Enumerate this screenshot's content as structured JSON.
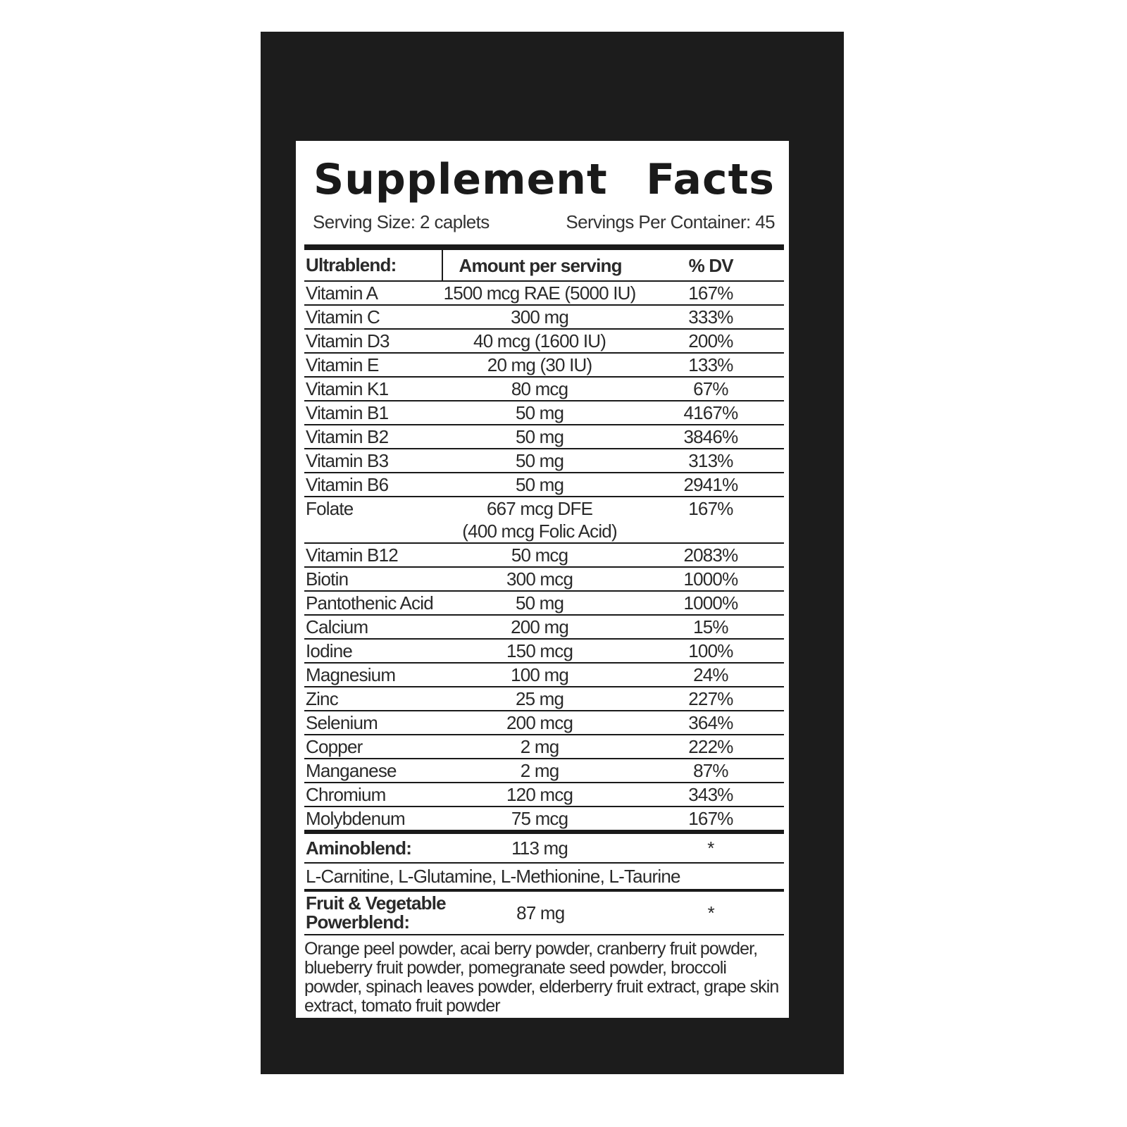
{
  "title": {
    "word1": "Supplement",
    "word2": "Facts"
  },
  "serving_size": "Serving Size: 2 caplets",
  "servings_per_container": "Servings Per Container: 45",
  "headers": {
    "blend": "Ultrablend:",
    "amount": "Amount per serving",
    "dv": "% DV"
  },
  "ultrablend": [
    {
      "name": "Vitamin A",
      "amount": "1500 mcg RAE (5000 IU)",
      "dv": "167%"
    },
    {
      "name": "Vitamin C",
      "amount": "300 mg",
      "dv": "333%"
    },
    {
      "name": "Vitamin D3",
      "amount": "40 mcg (1600 IU)",
      "dv": "200%"
    },
    {
      "name": "Vitamin E",
      "amount": "20 mg (30 IU)",
      "dv": "133%"
    },
    {
      "name": "Vitamin K1",
      "amount": "80 mcg",
      "dv": "67%"
    },
    {
      "name": "Vitamin B1",
      "amount": "50 mg",
      "dv": "4167%"
    },
    {
      "name": "Vitamin B2",
      "amount": "50 mg",
      "dv": "3846%"
    },
    {
      "name": "Vitamin B3",
      "amount": "50 mg",
      "dv": "313%"
    },
    {
      "name": "Vitamin B6",
      "amount": "50 mg",
      "dv": "2941%"
    },
    {
      "name": "Folate",
      "amount": "667 mcg DFE",
      "amount2": "(400 mcg Folic Acid)",
      "dv": "167%"
    },
    {
      "name": "Vitamin B12",
      "amount": "50 mcg",
      "dv": "2083%"
    },
    {
      "name": "Biotin",
      "amount": "300 mcg",
      "dv": "1000%"
    },
    {
      "name": "Pantothenic Acid",
      "amount": "50 mg",
      "dv": "1000%"
    },
    {
      "name": "Calcium",
      "amount": "200 mg",
      "dv": "15%"
    },
    {
      "name": "Iodine",
      "amount": "150 mcg",
      "dv": "100%"
    },
    {
      "name": "Magnesium",
      "amount": "100 mg",
      "dv": "24%"
    },
    {
      "name": "Zinc",
      "amount": "25 mg",
      "dv": "227%"
    },
    {
      "name": "Selenium",
      "amount": "200 mcg",
      "dv": "364%"
    },
    {
      "name": "Copper",
      "amount": "2 mg",
      "dv": "222%"
    },
    {
      "name": "Manganese",
      "amount": "2 mg",
      "dv": "87%"
    },
    {
      "name": "Chromium",
      "amount": "120 mcg",
      "dv": "343%"
    },
    {
      "name": "Molybdenum",
      "amount": "75 mcg",
      "dv": "167%"
    }
  ],
  "aminoblend": {
    "name": "Aminoblend:",
    "amount": "113 mg",
    "dv": "*",
    "ingredients": "L-Carnitine, L-Glutamine, L-Methionine, L-Taurine"
  },
  "powerblend": {
    "name_line1": "Fruit & Vegetable",
    "name_line2": "Powerblend:",
    "amount": "87 mg",
    "dv": "*",
    "ingredients": "Orange peel powder, acai berry powder, cranberry fruit powder, blueberry fruit powder, pomegranate seed powder, broccoli powder, spinach leaves powder, elderberry fruit extract, grape skin extract, tomato fruit powder"
  }
}
